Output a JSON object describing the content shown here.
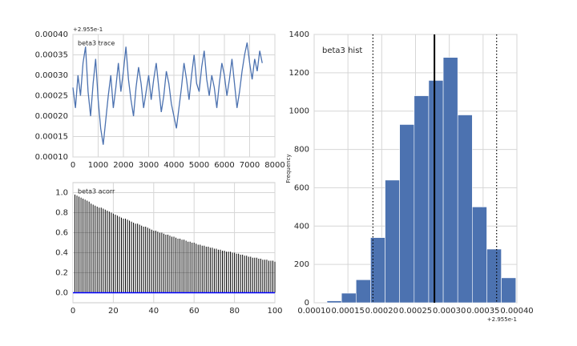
{
  "chart_data": [
    {
      "type": "line",
      "annotation": "beta3 trace",
      "offset_text": "+2.955e-1",
      "color": "#4c72b0",
      "grid": true,
      "x": [
        0,
        100,
        200,
        300,
        400,
        500,
        600,
        700,
        800,
        900,
        1000,
        1100,
        1200,
        1300,
        1400,
        1500,
        1600,
        1700,
        1800,
        1900,
        2000,
        2100,
        2200,
        2300,
        2400,
        2500,
        2600,
        2700,
        2800,
        2900,
        3000,
        3100,
        3200,
        3300,
        3400,
        3500,
        3600,
        3700,
        3800,
        3900,
        4000,
        4100,
        4200,
        4300,
        4400,
        4500,
        4600,
        4700,
        4800,
        4900,
        5000,
        5100,
        5200,
        5300,
        5400,
        5500,
        5600,
        5700,
        5800,
        5900,
        6000,
        6100,
        6200,
        6300,
        6400,
        6500,
        6600,
        6700,
        6800,
        6900,
        7000,
        7100,
        7200,
        7300,
        7400,
        7500
      ],
      "values": [
        0.00027,
        0.00022,
        0.0003,
        0.00025,
        0.00033,
        0.00037,
        0.00026,
        0.0002,
        0.00028,
        0.00034,
        0.00024,
        0.00017,
        0.00013,
        0.00019,
        0.00025,
        0.0003,
        0.00022,
        0.00027,
        0.00033,
        0.00026,
        0.00031,
        0.00037,
        0.00029,
        0.00024,
        0.0002,
        0.00027,
        0.00032,
        0.00028,
        0.00022,
        0.00026,
        0.0003,
        0.00024,
        0.00029,
        0.00033,
        0.00027,
        0.00021,
        0.00025,
        0.00031,
        0.00028,
        0.00023,
        0.0002,
        0.00017,
        0.00022,
        0.00027,
        0.00033,
        0.00029,
        0.00024,
        0.0003,
        0.00035,
        0.00028,
        0.00026,
        0.00032,
        0.00036,
        0.00029,
        0.00025,
        0.0003,
        0.00027,
        0.00022,
        0.00028,
        0.00033,
        0.0003,
        0.00025,
        0.00029,
        0.00034,
        0.00028,
        0.00022,
        0.00026,
        0.00031,
        0.00035,
        0.00038,
        0.00033,
        0.00029,
        0.00034,
        0.00031,
        0.00036,
        0.00033
      ],
      "xlim": [
        0,
        8000
      ],
      "xticks": [
        0,
        1000,
        2000,
        3000,
        4000,
        5000,
        6000,
        7000,
        8000
      ],
      "ylim": [
        0.0001,
        0.0004
      ],
      "yticks": [
        {
          "value": 0.0001,
          "label": "0.00010"
        },
        {
          "value": 0.00015,
          "label": "0.00015"
        },
        {
          "value": 0.0002,
          "label": "0.00020"
        },
        {
          "value": 0.00025,
          "label": "0.00025"
        },
        {
          "value": 0.0003,
          "label": "0.00030"
        },
        {
          "value": 0.00035,
          "label": "0.00035"
        },
        {
          "value": 0.0004,
          "label": "0.00040"
        }
      ]
    },
    {
      "type": "stem",
      "annotation": "beta3 acorr",
      "color": "#000000",
      "grid": true,
      "hline": 0,
      "hline_color": "#0000ff",
      "x": [
        1,
        2,
        3,
        4,
        5,
        6,
        7,
        8,
        9,
        10,
        11,
        12,
        13,
        14,
        15,
        16,
        17,
        18,
        19,
        20,
        21,
        22,
        23,
        24,
        25,
        26,
        27,
        28,
        29,
        30,
        31,
        32,
        33,
        34,
        35,
        36,
        37,
        38,
        39,
        40,
        41,
        42,
        43,
        44,
        45,
        46,
        47,
        48,
        49,
        50,
        51,
        52,
        53,
        54,
        55,
        56,
        57,
        58,
        59,
        60,
        61,
        62,
        63,
        64,
        65,
        66,
        67,
        68,
        69,
        70,
        71,
        72,
        73,
        74,
        75,
        76,
        77,
        78,
        79,
        80,
        81,
        82,
        83,
        84,
        85,
        86,
        87,
        88,
        89,
        90,
        91,
        92,
        93,
        94,
        95,
        96,
        97,
        98,
        99,
        100
      ],
      "values": [
        0.98,
        0.97,
        0.96,
        0.95,
        0.94,
        0.93,
        0.92,
        0.91,
        0.89,
        0.88,
        0.87,
        0.86,
        0.85,
        0.85,
        0.84,
        0.83,
        0.82,
        0.81,
        0.8,
        0.79,
        0.78,
        0.77,
        0.76,
        0.75,
        0.74,
        0.74,
        0.73,
        0.72,
        0.71,
        0.7,
        0.69,
        0.69,
        0.68,
        0.67,
        0.66,
        0.66,
        0.65,
        0.64,
        0.63,
        0.62,
        0.62,
        0.61,
        0.6,
        0.6,
        0.59,
        0.58,
        0.58,
        0.57,
        0.56,
        0.56,
        0.55,
        0.54,
        0.54,
        0.53,
        0.53,
        0.52,
        0.51,
        0.51,
        0.5,
        0.5,
        0.49,
        0.48,
        0.48,
        0.47,
        0.47,
        0.46,
        0.46,
        0.45,
        0.45,
        0.44,
        0.44,
        0.43,
        0.43,
        0.42,
        0.42,
        0.41,
        0.41,
        0.41,
        0.4,
        0.4,
        0.39,
        0.39,
        0.38,
        0.38,
        0.37,
        0.37,
        0.36,
        0.36,
        0.35,
        0.35,
        0.35,
        0.34,
        0.34,
        0.33,
        0.33,
        0.33,
        0.32,
        0.32,
        0.32,
        0.31
      ],
      "xlim": [
        0,
        100
      ],
      "xticks": [
        0,
        20,
        40,
        60,
        80,
        100
      ],
      "ylim": [
        -0.1,
        1.1
      ],
      "yticks": [
        {
          "value": 0,
          "label": "0.0"
        },
        {
          "value": 0.2,
          "label": "0.2"
        },
        {
          "value": 0.4,
          "label": "0.4"
        },
        {
          "value": 0.6,
          "label": "0.6"
        },
        {
          "value": 0.8,
          "label": "0.8"
        },
        {
          "value": 1,
          "label": "1.0"
        }
      ]
    },
    {
      "type": "histogram",
      "annotation": "beta3 hist",
      "offset_text": "+2.955e-1",
      "y_label": "Frequency",
      "color": "#4c72b0",
      "grid": true,
      "bins": [
        0.000119,
        0.0001405,
        0.000162,
        0.0001835,
        0.000205,
        0.0002265,
        0.000248,
        0.0002695,
        0.000291,
        0.0003125,
        0.000334,
        0.0003555,
        0.000377,
        0.0003985
      ],
      "values": [
        10,
        50,
        120,
        340,
        640,
        930,
        1080,
        1160,
        1280,
        980,
        500,
        280,
        130
      ],
      "vlines": [
        {
          "value": 0.000187,
          "style": "dotted"
        },
        {
          "value": 0.000278,
          "style": "solid"
        },
        {
          "value": 0.00037,
          "style": "dotted"
        }
      ],
      "xlim": [
        0.0001,
        0.0004
      ],
      "xticks": [
        {
          "value": 0.0001,
          "label": "0.00010"
        },
        {
          "value": 0.00015,
          "label": "0.00015"
        },
        {
          "value": 0.0002,
          "label": "0.00020"
        },
        {
          "value": 0.00025,
          "label": "0.00025"
        },
        {
          "value": 0.0003,
          "label": "0.00030"
        },
        {
          "value": 0.00035,
          "label": "0.00035"
        },
        {
          "value": 0.0004,
          "label": "0.00040"
        }
      ],
      "ylim": [
        0,
        1400
      ],
      "yticks": [
        0,
        200,
        400,
        600,
        800,
        1000,
        1200,
        1400
      ]
    }
  ]
}
